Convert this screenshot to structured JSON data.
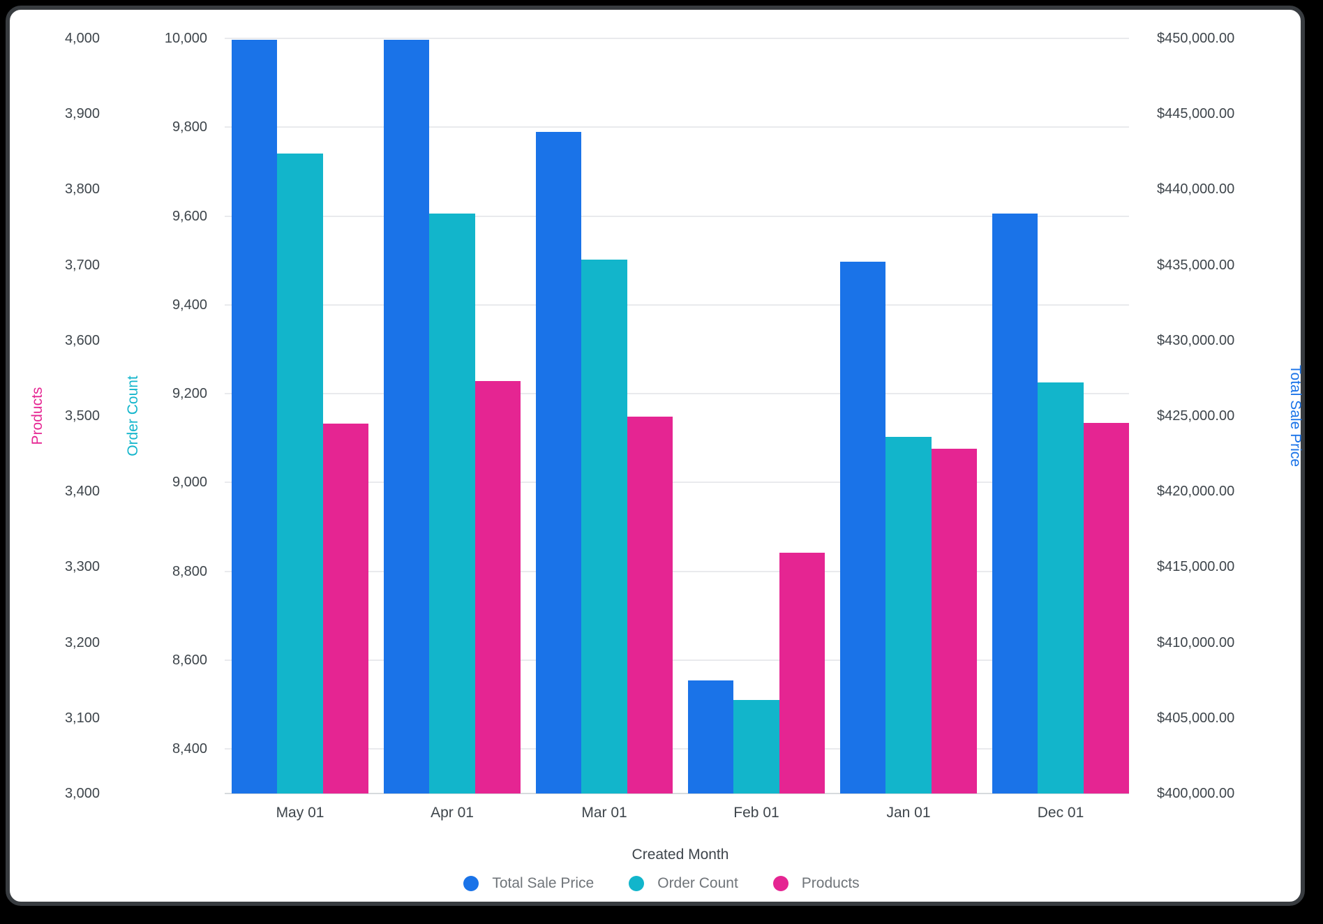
{
  "chart_data": {
    "type": "bar",
    "title": "",
    "categories": [
      "May 01",
      "Apr 01",
      "Mar 01",
      "Feb 01",
      "Jan 01",
      "Dec 01"
    ],
    "x_axis_title": "Created Month",
    "series": [
      {
        "name": "Total Sale Price",
        "axis": "sale",
        "color": "#1A73E8",
        "values": [
          449900,
          449900,
          443800,
          407500,
          435200,
          438400
        ]
      },
      {
        "name": "Order Count",
        "axis": "order",
        "color": "#12B5CB",
        "values": [
          9740,
          9605,
          9502,
          8511,
          9103,
          9225
        ]
      },
      {
        "name": "Products",
        "axis": "products",
        "color": "#E52592",
        "values": [
          3490,
          3546,
          3499,
          3319,
          3457,
          3491
        ]
      }
    ],
    "axes": {
      "products": {
        "title": "Products",
        "color": "#E52592",
        "min": 3000,
        "max": 4000,
        "tick_values": [
          3000,
          3100,
          3200,
          3300,
          3400,
          3500,
          3600,
          3700,
          3800,
          3900,
          4000
        ],
        "tick_labels": [
          "3,000",
          "3,100",
          "3,200",
          "3,300",
          "3,400",
          "3,500",
          "3,600",
          "3,700",
          "3,800",
          "3,900",
          "4,000"
        ]
      },
      "order": {
        "title": "Order Count",
        "color": "#12B5CB",
        "min": 8300,
        "max": 10000,
        "tick_values": [
          8400,
          8600,
          8800,
          9000,
          9200,
          9400,
          9600,
          9800,
          10000
        ],
        "tick_labels": [
          "8,400",
          "8,600",
          "8,800",
          "9,000",
          "9,200",
          "9,400",
          "9,600",
          "9,800",
          "10,000"
        ]
      },
      "sale": {
        "title": "Total Sale Price",
        "color": "#1A73E8",
        "min": 400000,
        "max": 450000,
        "tick_values": [
          400000,
          405000,
          410000,
          415000,
          420000,
          425000,
          430000,
          435000,
          440000,
          445000,
          450000
        ],
        "tick_labels": [
          "$400,000.00",
          "$405,000.00",
          "$410,000.00",
          "$415,000.00",
          "$420,000.00",
          "$425,000.00",
          "$430,000.00",
          "$435,000.00",
          "$440,000.00",
          "$445,000.00",
          "$450,000.00"
        ]
      }
    },
    "legend": {
      "position": "bottom",
      "items": [
        "Total Sale Price",
        "Order Count",
        "Products"
      ]
    },
    "gridlines": {
      "axis": "order",
      "on": true
    }
  },
  "colors": {
    "background": "#000000",
    "card_border": "#383C40",
    "card_background": "#FFFFFF",
    "gridline": "#E9EAED",
    "baseline": "#D7DADD",
    "tick_text": "#3E454B",
    "legend_text": "#6F7479"
  }
}
